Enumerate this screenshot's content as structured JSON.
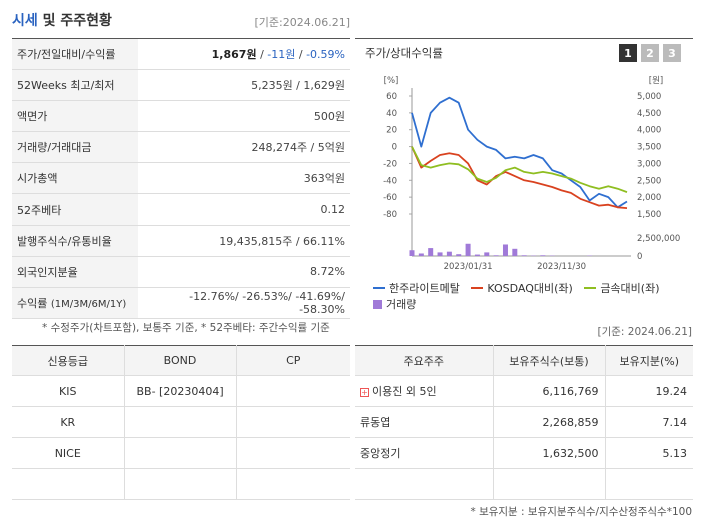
{
  "header": {
    "title_main": "시세",
    "title_rest": " 및 주주현황",
    "as_of": "[기준:2024.06.21]"
  },
  "summary": {
    "rows": [
      {
        "label": "주가/전일대비/수익률",
        "price": "1,867원",
        "sep1": " / ",
        "change": "-11원",
        "sep2": " / ",
        "rate": "-0.59%"
      },
      {
        "label": "52Weeks 최고/최저",
        "value": "5,235원 / 1,629원"
      },
      {
        "label": "액면가",
        "value": "500원"
      },
      {
        "label": "거래량/거래대금",
        "value": "248,274주 / 5억원"
      },
      {
        "label": "시가총액",
        "value": "363억원"
      },
      {
        "label": "52주베타",
        "value": "0.12"
      },
      {
        "label": "발행주식수/유통비율",
        "value": "19,435,815주 / 66.11%"
      },
      {
        "label": "외국인지분율",
        "value": "8.72%"
      }
    ],
    "returns": {
      "label": "수익률",
      "periods": "(1M/3M/6M/1Y)",
      "value": "-12.76%/ -26.53%/ -41.69%/ -58.30%"
    },
    "note": "* 수정주가(차트포함), 보통주 기준, * 52주베타: 주간수익률 기준"
  },
  "chart": {
    "title": "주가/상대수익률",
    "tabs": [
      "1",
      "2",
      "3"
    ],
    "left_unit": "[%]",
    "right_unit": "[원]",
    "left_ticks": [
      "60",
      "40",
      "20",
      "0",
      "-20",
      "-40",
      "-60",
      "-80"
    ],
    "right_ticks": [
      "5,000",
      "4,500",
      "4,000",
      "3,500",
      "3,000",
      "2,500",
      "2,000",
      "1,500"
    ],
    "volume_tick_top": "2,500,000",
    "volume_tick_bottom": "0",
    "x_labels": [
      "2023/01/31",
      "2023/11/30"
    ],
    "legend": {
      "s1": "한주라이트메탈",
      "s2": "KOSDAQ대비(좌)",
      "s3": "금속대비(좌)",
      "vol": "거래량"
    },
    "colors": {
      "s1": "#2f6fd0",
      "s2": "#d9421f",
      "s3": "#8fbe21",
      "vol": "#a07ad8"
    }
  },
  "chart_data": {
    "type": "line",
    "x": [
      "2022-07",
      "2022-08",
      "2022-09",
      "2022-10",
      "2022-11",
      "2022-12",
      "2023-01",
      "2023-02",
      "2023-03",
      "2023-04",
      "2023-05",
      "2023-06",
      "2023-07",
      "2023-08",
      "2023-09",
      "2023-10",
      "2023-11",
      "2023-12",
      "2024-01",
      "2024-02",
      "2024-03",
      "2024-04",
      "2024-05",
      "2024-06"
    ],
    "series": [
      {
        "name": "한주라이트메탈",
        "axis": "right",
        "values": [
          4500,
          3500,
          4500,
          4800,
          4950,
          4800,
          4000,
          3700,
          3500,
          3400,
          3150,
          3200,
          3150,
          3250,
          3150,
          2800,
          2700,
          2500,
          2300,
          1900,
          2100,
          2000,
          1700,
          1870
        ]
      },
      {
        "name": "KOSDAQ대비(좌)",
        "axis": "left",
        "values": [
          0,
          -25,
          -17,
          -10,
          -8,
          -10,
          -20,
          -40,
          -45,
          -35,
          -30,
          -35,
          -40,
          -42,
          -45,
          -48,
          -52,
          -55,
          -62,
          -66,
          -70,
          -69,
          -72,
          -73
        ]
      },
      {
        "name": "금속대비(좌)",
        "axis": "left",
        "values": [
          0,
          -22,
          -25,
          -22,
          -20,
          -21,
          -27,
          -38,
          -42,
          -37,
          -28,
          -25,
          -30,
          -32,
          -30,
          -32,
          -35,
          -38,
          -43,
          -47,
          -50,
          -47,
          -50,
          -54
        ]
      },
      {
        "name": "거래량",
        "axis": "volume",
        "values": [
          800000,
          350000,
          1100000,
          500000,
          600000,
          250000,
          1700000,
          200000,
          500000,
          100000,
          1600000,
          1000000,
          100000,
          50000,
          100000,
          50000,
          0,
          0,
          0,
          50000,
          0,
          0,
          0,
          0
        ]
      }
    ],
    "ylim_left": [
      -80,
      60
    ],
    "ylim_right": [
      1500,
      5000
    ],
    "ylim_volume": [
      0,
      2500000
    ]
  },
  "asof_mid": "[기준: 2024.06.21]",
  "credit": {
    "headers": [
      "신용등급",
      "BOND",
      "CP"
    ],
    "rows": [
      {
        "agency": "KIS",
        "bond": "BB-  [20230404]",
        "cp": ""
      },
      {
        "agency": "KR",
        "bond": "",
        "cp": ""
      },
      {
        "agency": "NICE",
        "bond": "",
        "cp": ""
      },
      {
        "agency": "",
        "bond": "",
        "cp": ""
      }
    ]
  },
  "holders": {
    "headers": [
      "주요주주",
      "보유주식수(보통)",
      "보유지분(%)"
    ],
    "rows": [
      {
        "name": "이용진 외 5인",
        "shares": "6,116,769",
        "pct": "19.24"
      },
      {
        "name": "류동엽",
        "shares": "2,268,859",
        "pct": "7.14"
      },
      {
        "name": "중앙정기",
        "shares": "1,632,500",
        "pct": "5.13"
      },
      {
        "name": "",
        "shares": "",
        "pct": ""
      }
    ],
    "note": "* 보유지분 : 보유지분주식수/지수산정주식수*100"
  }
}
